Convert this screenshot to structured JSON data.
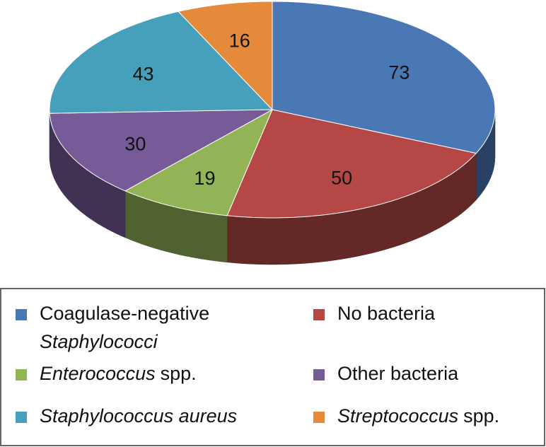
{
  "chart_data": {
    "type": "pie3d",
    "categories": [
      [
        {
          "text": "Coagulase-negative"
        },
        {
          "text": "Staphylococci",
          "italic": true
        }
      ],
      [
        {
          "text": "No bacteria"
        }
      ],
      [
        {
          "text": "Enterococcus",
          "italic": true
        },
        {
          "text": "spp."
        }
      ],
      [
        {
          "text": "Other bacteria"
        }
      ],
      [
        {
          "text": "Staphylococcus aureus",
          "italic": true
        }
      ],
      [
        {
          "text": "Streptococcus",
          "italic": true
        },
        {
          "text": "spp."
        }
      ]
    ],
    "values": [
      73,
      50,
      19,
      30,
      43,
      16
    ],
    "colors": [
      "#4a78b5",
      "#b54846",
      "#92b356",
      "#775b99",
      "#46a0bc",
      "#e58a3b"
    ],
    "legend": "bottom"
  }
}
